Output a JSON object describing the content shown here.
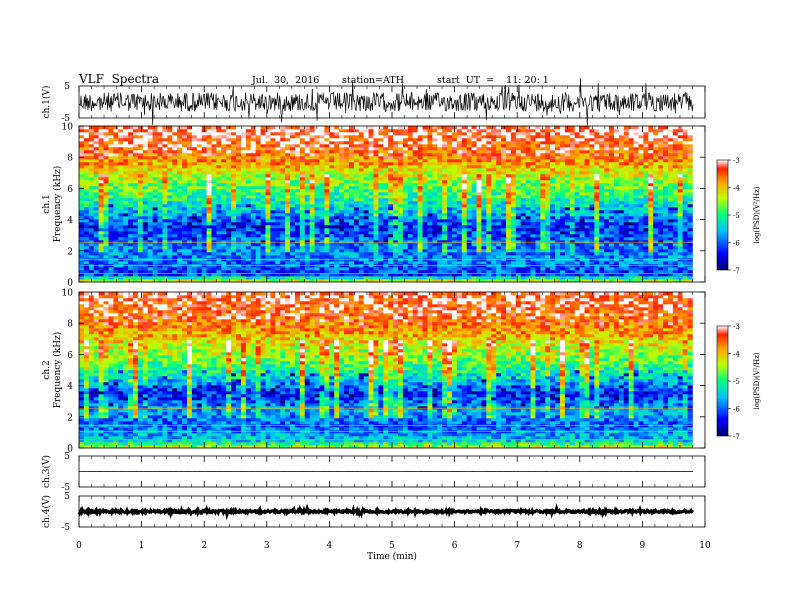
{
  "header": {
    "title": "VLF  Spectra",
    "date": "Jul.  30,  2016",
    "station": "station=ATH",
    "start": "start  UT  =    11: 20: 1"
  },
  "chart_data": [
    {
      "type": "line",
      "panel": "ch1-waveform",
      "ylabel": "ch.1(V)",
      "y_ticks": [
        "5",
        "-5"
      ],
      "ylim": [
        -5,
        5
      ],
      "xlim": [
        0,
        10
      ],
      "description_values": {
        "baseline_V": 0.0,
        "amplitude_V": 1.5
      }
    },
    {
      "type": "heatmap",
      "panel": "ch1-spectrogram",
      "ylabel": "Frequency  (kHz)",
      "channel_label": "ch.1",
      "ylim": [
        0,
        10
      ],
      "y_ticks": [
        "0",
        "2",
        "4",
        "6",
        "8",
        "10"
      ],
      "xlim": [
        0,
        9.8
      ],
      "colorbar": {
        "label": "log(PSD)(V²/Hz)",
        "range": [
          -7,
          -3
        ],
        "ticks": [
          "-3",
          "-4",
          "-5",
          "-6",
          "-7"
        ]
      },
      "band_profile_logPSD": [
        [
          0,
          -4.0
        ],
        [
          0.5,
          -6.2
        ],
        [
          1.5,
          -5.8
        ],
        [
          2.5,
          -5.9
        ],
        [
          3.5,
          -6.3
        ],
        [
          4.5,
          -5.6
        ],
        [
          5.5,
          -5.0
        ],
        [
          6.5,
          -4.6
        ],
        [
          7.5,
          -3.9
        ],
        [
          8.5,
          -3.4
        ],
        [
          10,
          -3.1
        ]
      ]
    },
    {
      "type": "heatmap",
      "panel": "ch2-spectrogram",
      "ylabel": "Frequency  (kHz)",
      "channel_label": "ch.2",
      "ylim": [
        0,
        10
      ],
      "y_ticks": [
        "0",
        "2",
        "4",
        "6",
        "8",
        "10"
      ],
      "xlim": [
        0,
        9.8
      ],
      "colorbar": {
        "label": "log(PSD)(V²/Hz)",
        "range": [
          -7,
          -3
        ],
        "ticks": [
          "-3",
          "-4",
          "-5",
          "-6",
          "-7"
        ]
      },
      "band_profile_logPSD": [
        [
          0,
          -4.2
        ],
        [
          0.5,
          -5.5
        ],
        [
          1.5,
          -6.0
        ],
        [
          2.5,
          -5.6
        ],
        [
          3.5,
          -6.4
        ],
        [
          4.5,
          -5.4
        ],
        [
          5.5,
          -4.8
        ],
        [
          6.5,
          -4.3
        ],
        [
          7.5,
          -3.8
        ],
        [
          8.5,
          -3.4
        ],
        [
          10,
          -3.2
        ]
      ]
    },
    {
      "type": "line",
      "panel": "ch3-waveform",
      "ylabel": "ch.3(V)",
      "y_ticks": [
        "5",
        "-5"
      ],
      "ylim": [
        -5,
        5
      ],
      "xlim": [
        0,
        10
      ],
      "description_values": {
        "baseline_V": 0.0,
        "amplitude_V": 0.02
      }
    },
    {
      "type": "line",
      "panel": "ch4-waveform",
      "ylabel": "ch.4(V)",
      "y_ticks": [
        "5",
        "-5"
      ],
      "ylim": [
        -5,
        5
      ],
      "xlim": [
        0,
        10
      ],
      "description_values": {
        "baseline_V": 0.0,
        "amplitude_V": 0.2
      }
    }
  ],
  "x_axis": {
    "label": "Time  (min)",
    "ticks": [
      "0",
      "1",
      "2",
      "3",
      "4",
      "5",
      "6",
      "7",
      "8",
      "9",
      "10"
    ],
    "range": [
      0,
      10
    ]
  }
}
